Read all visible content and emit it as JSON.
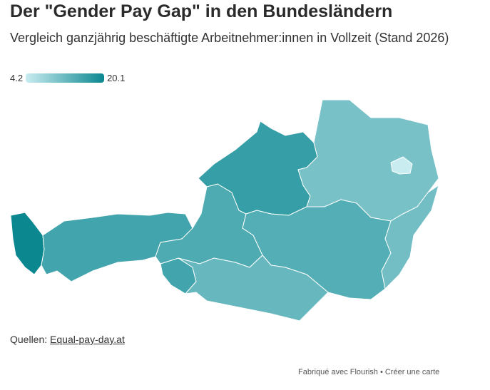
{
  "header": {
    "title": "Der \"Gender Pay Gap\" in den Bundesländern",
    "subtitle": "Vergleich ganzjährig beschäftigte Arbeitnehmer:innen in Vollzeit (Stand 2026)"
  },
  "legend": {
    "min": 4.2,
    "max": 20.1,
    "color_min": "#c9ecf0",
    "color_max": "#0b8790"
  },
  "map": {
    "region_values": [
      20.1,
      15.5,
      14.5,
      16.5,
      11,
      4.2,
      14,
      12.5,
      11.5
    ]
  },
  "footer": {
    "source_label": "Quellen:",
    "source_link": "Equal-pay-day.at",
    "credit": "Fabriqué avec Flourish • Créer une carte"
  }
}
